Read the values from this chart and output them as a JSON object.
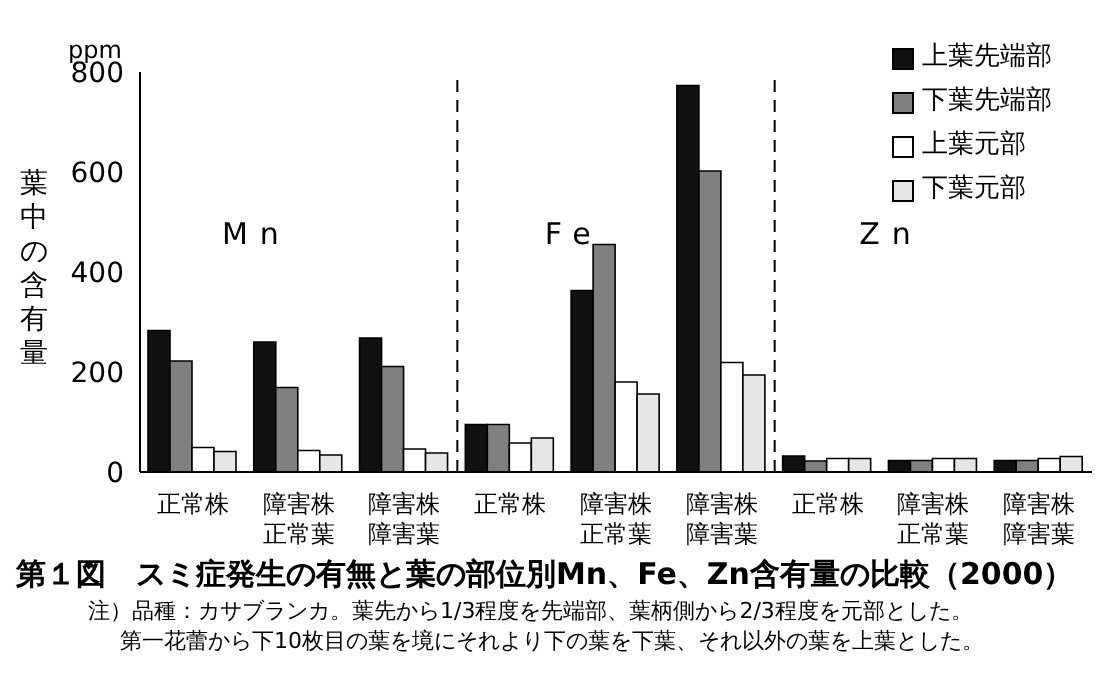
{
  "chart_data": {
    "type": "bar",
    "title": "第１図　スミ症発生の有無と葉の部位別Mn、Fe、Zn含有量の比較（2000）",
    "ylabel": "葉中の含有量",
    "categories": [
      "正常株",
      "障害株正常葉",
      "障害株障害葉",
      "正常株",
      "障害株正常葉",
      "障害株障害葉",
      "正常株",
      "障害株正常葉",
      "障害株障害葉"
    ],
    "series": [
      {
        "name": "上葉先端部",
        "color": "#111111",
        "values": [
          283,
          260,
          268,
          95,
          363,
          773,
          32,
          23,
          23
        ]
      },
      {
        "name": "下葉先端部",
        "color": "#808080",
        "values": [
          222,
          169,
          211,
          95,
          455,
          602,
          22,
          23,
          23
        ]
      },
      {
        "name": "上葉元部",
        "color": "#ffffff",
        "values": [
          49,
          43,
          46,
          58,
          180,
          219,
          27,
          27,
          27
        ]
      },
      {
        "name": "下葉元部",
        "color": "#e6e6e6",
        "values": [
          41,
          34,
          38,
          68,
          156,
          194,
          27,
          27,
          31
        ]
      }
    ],
    "ylim": [
      0,
      800
    ],
    "yticks": [
      0,
      200,
      400,
      600,
      800
    ],
    "grid": false,
    "legend": "top right",
    "annotations": [
      "Mn",
      "Fe",
      "Zn",
      "ppm",
      "注）品種：カサブランカ。葉先から1/3程度を先端部、葉柄側から2/3程度を元部とした。",
      "第一花蕾から下10枚目の葉を境にそれより下の葉を下葉、それ以外の葉を上葉とした。"
    ]
  }
}
